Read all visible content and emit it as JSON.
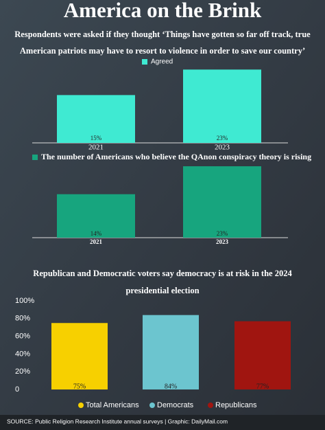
{
  "title": "America on the Brink",
  "source": "SOURCE: Public Religion Research Institute annual surveys | Graphic: DailyMail.com",
  "chart_data": [
    {
      "type": "bar",
      "title": [
        "Respondents were asked if they thought ‘Things have gotten so far off track, true",
        "American patriots may have to resort to violence in order to save our country’"
      ],
      "categories": [
        "2021",
        "2023"
      ],
      "series": [
        {
          "name": "Agreed",
          "color": "#3fead2",
          "values": [
            15,
            23
          ],
          "value_labels": [
            "15%",
            "23%"
          ]
        }
      ],
      "ylim": [
        0,
        25
      ]
    },
    {
      "type": "bar",
      "categories": [
        "2021",
        "2023"
      ],
      "series": [
        {
          "name": "The number of Americans who believe the QAnon conspiracy theory is rising",
          "color": "#17a57e",
          "values": [
            14,
            23
          ],
          "value_labels": [
            "14%",
            "23%"
          ]
        }
      ],
      "ylim": [
        0,
        25
      ]
    },
    {
      "type": "bar",
      "title": [
        "Republican and Democratic voters say democracy is at risk in the 2024",
        "presidential election"
      ],
      "categories": [
        "Total Americans",
        "Democrats",
        "Republicans"
      ],
      "values": [
        75,
        84,
        77
      ],
      "value_labels": [
        "75%",
        "84%",
        "77%"
      ],
      "colors": [
        "#f7d000",
        "#6cc5cf",
        "#a01510"
      ],
      "ylim": [
        0,
        100
      ],
      "yticks": [
        0,
        {
          "value": 20,
          "label": "20%"
        },
        {
          "value": 40,
          "label": "40%"
        },
        {
          "value": 60,
          "label": "60%"
        },
        {
          "value": 80,
          "label": "80%"
        },
        {
          "value": 100,
          "label": "100%"
        }
      ]
    }
  ]
}
